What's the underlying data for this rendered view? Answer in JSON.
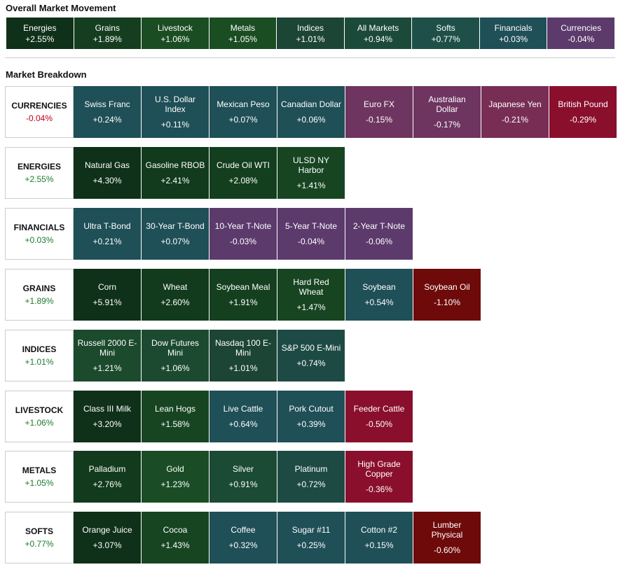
{
  "overall": {
    "title": "Overall Market Movement",
    "tiles": [
      {
        "name": "Energies",
        "change": "+2.55%",
        "color": "#0f3019"
      },
      {
        "name": "Grains",
        "change": "+1.89%",
        "color": "#153d1f"
      },
      {
        "name": "Livestock",
        "change": "+1.06%",
        "color": "#1a4d22"
      },
      {
        "name": "Metals",
        "change": "+1.05%",
        "color": "#1a4d22"
      },
      {
        "name": "Indices",
        "change": "+1.01%",
        "color": "#1c4535"
      },
      {
        "name": "All Markets",
        "change": "+0.94%",
        "color": "#1c4a3a"
      },
      {
        "name": "Softs",
        "change": "+0.77%",
        "color": "#1e5049"
      },
      {
        "name": "Financials",
        "change": "+0.03%",
        "color": "#1f4f57"
      },
      {
        "name": "Currencies",
        "change": "-0.04%",
        "color": "#5c3a6c"
      }
    ]
  },
  "breakdown": {
    "title": "Market Breakdown",
    "sections": [
      {
        "name": "CURRENCIES",
        "change": "-0.04%",
        "tiles": [
          {
            "name": "Swiss Franc",
            "change": "+0.24%",
            "color": "#1f4f57"
          },
          {
            "name": "U.S. Dollar Index",
            "change": "+0.11%",
            "color": "#1f4f57"
          },
          {
            "name": "Mexican Peso",
            "change": "+0.07%",
            "color": "#1f4f57"
          },
          {
            "name": "Canadian Dollar",
            "change": "+0.06%",
            "color": "#1f4f57"
          },
          {
            "name": "Euro FX",
            "change": "-0.15%",
            "color": "#6e3560"
          },
          {
            "name": "Australian Dollar",
            "change": "-0.17%",
            "color": "#6e3560"
          },
          {
            "name": "Japanese Yen",
            "change": "-0.21%",
            "color": "#782d55"
          },
          {
            "name": "British Pound",
            "change": "-0.29%",
            "color": "#8a0f2c"
          }
        ]
      },
      {
        "name": "ENERGIES",
        "change": "+2.55%",
        "tiles": [
          {
            "name": "Natural Gas",
            "change": "+4.30%",
            "color": "#0f3019"
          },
          {
            "name": "Gasoline RBOB",
            "change": "+2.41%",
            "color": "#123a1c"
          },
          {
            "name": "Crude Oil WTI",
            "change": "+2.08%",
            "color": "#143f1e"
          },
          {
            "name": "ULSD NY Harbor",
            "change": "+1.41%",
            "color": "#174522"
          }
        ]
      },
      {
        "name": "FINANCIALS",
        "change": "+0.03%",
        "tiles": [
          {
            "name": "Ultra T-Bond",
            "change": "+0.21%",
            "color": "#1f4f57"
          },
          {
            "name": "30-Year T-Bond",
            "change": "+0.07%",
            "color": "#1f4f57"
          },
          {
            "name": "10-Year T-Note",
            "change": "-0.03%",
            "color": "#5c3a6c"
          },
          {
            "name": "5-Year T-Note",
            "change": "-0.04%",
            "color": "#5c3a6c"
          },
          {
            "name": "2-Year T-Note",
            "change": "-0.06%",
            "color": "#5c3a6c"
          }
        ]
      },
      {
        "name": "GRAINS",
        "change": "+1.89%",
        "tiles": [
          {
            "name": "Corn",
            "change": "+5.91%",
            "color": "#0f3019"
          },
          {
            "name": "Wheat",
            "change": "+2.60%",
            "color": "#123a1c"
          },
          {
            "name": "Soybean Meal",
            "change": "+1.91%",
            "color": "#154020"
          },
          {
            "name": "Hard Red Wheat",
            "change": "+1.47%",
            "color": "#174522"
          },
          {
            "name": "Soybean",
            "change": "+0.54%",
            "color": "#1f4f57"
          },
          {
            "name": "Soybean Oil",
            "change": "-1.10%",
            "color": "#6e0a0a"
          }
        ]
      },
      {
        "name": "INDICES",
        "change": "+1.01%",
        "tiles": [
          {
            "name": "Russell 2000 E-Mini",
            "change": "+1.21%",
            "color": "#1b4a2c"
          },
          {
            "name": "Dow Futures Mini",
            "change": "+1.06%",
            "color": "#1c4a30"
          },
          {
            "name": "Nasdaq 100 E-Mini",
            "change": "+1.01%",
            "color": "#1c4535"
          },
          {
            "name": "S&P 500 E-Mini",
            "change": "+0.74%",
            "color": "#1e4a45"
          }
        ]
      },
      {
        "name": "LIVESTOCK",
        "change": "+1.06%",
        "tiles": [
          {
            "name": "Class III Milk",
            "change": "+3.20%",
            "color": "#0f3019"
          },
          {
            "name": "Lean Hogs",
            "change": "+1.58%",
            "color": "#174522"
          },
          {
            "name": "Live Cattle",
            "change": "+0.64%",
            "color": "#1f4f57"
          },
          {
            "name": "Pork Cutout",
            "change": "+0.39%",
            "color": "#1f4f57"
          },
          {
            "name": "Feeder Cattle",
            "change": "-0.50%",
            "color": "#8a0f2c"
          }
        ]
      },
      {
        "name": "METALS",
        "change": "+1.05%",
        "tiles": [
          {
            "name": "Palladium",
            "change": "+2.76%",
            "color": "#123a1c"
          },
          {
            "name": "Gold",
            "change": "+1.23%",
            "color": "#1a4d25"
          },
          {
            "name": "Silver",
            "change": "+0.91%",
            "color": "#1b4a35"
          },
          {
            "name": "Platinum",
            "change": "+0.72%",
            "color": "#1d4a42"
          },
          {
            "name": "High Grade Copper",
            "change": "-0.36%",
            "color": "#8a0f2c"
          }
        ]
      },
      {
        "name": "SOFTS",
        "change": "+0.77%",
        "tiles": [
          {
            "name": "Orange Juice",
            "change": "+3.07%",
            "color": "#0f3019"
          },
          {
            "name": "Cocoa",
            "change": "+1.43%",
            "color": "#174522"
          },
          {
            "name": "Coffee",
            "change": "+0.32%",
            "color": "#1f4f57"
          },
          {
            "name": "Sugar #11",
            "change": "+0.25%",
            "color": "#1f4f57"
          },
          {
            "name": "Cotton #2",
            "change": "+0.15%",
            "color": "#1f4f57"
          },
          {
            "name": "Lumber Physical",
            "change": "-0.60%",
            "color": "#6e0a0a"
          }
        ]
      }
    ]
  }
}
